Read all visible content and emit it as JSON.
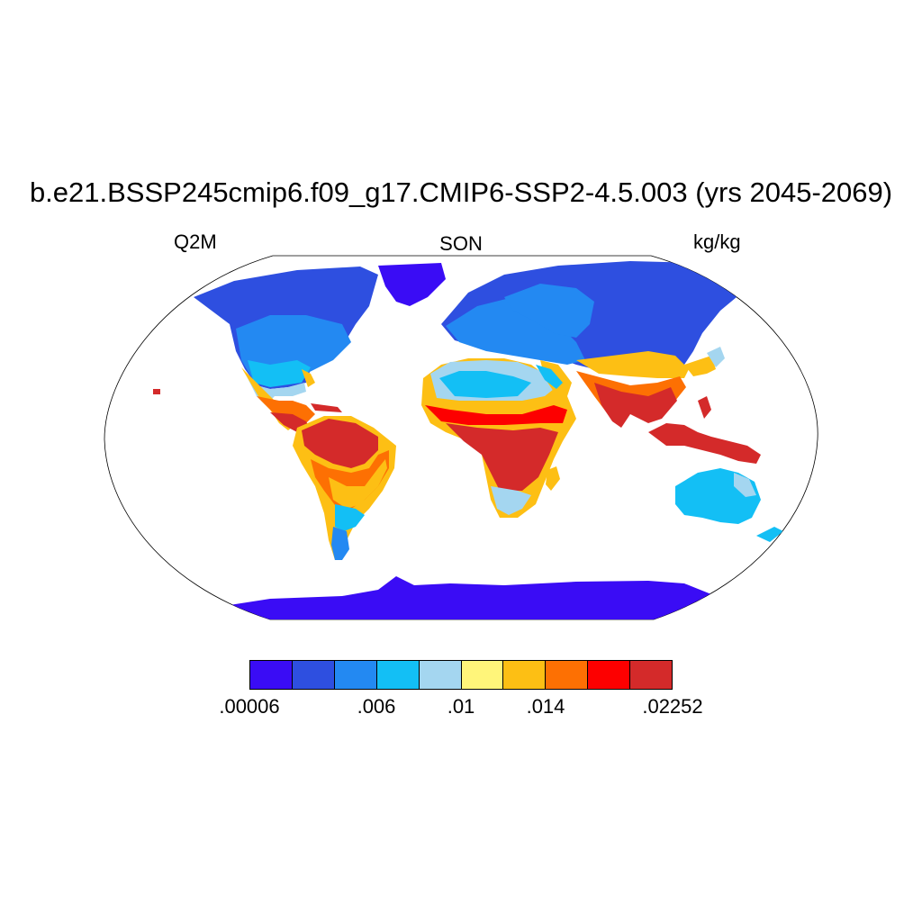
{
  "title": "b.e21.BSSP245cmip6.f09_g17.CMIP6-SSP2-4.5.003 (yrs 2045-2069)",
  "left_label": "Q2M",
  "center_label": "SON",
  "right_label": "kg/kg",
  "colorbar": {
    "colors": [
      "#3a0cf5",
      "#2e4fe0",
      "#2389f2",
      "#13bff5",
      "#a4d6f0",
      "#fff57a",
      "#fdbf14",
      "#fd7003",
      "#fd0000",
      "#d42a2a"
    ],
    "labels": [
      {
        "text": ".00006",
        "index": 0
      },
      {
        "text": ".006",
        "index": 3
      },
      {
        "text": ".01",
        "index": 5
      },
      {
        "text": ".014",
        "index": 7
      },
      {
        "text": ".02252",
        "index": 10
      }
    ]
  }
}
